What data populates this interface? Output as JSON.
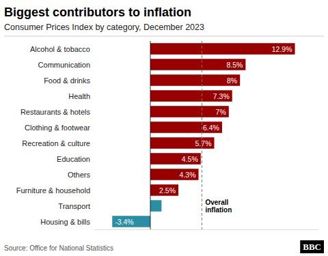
{
  "chart_data": {
    "type": "bar",
    "orientation": "horizontal",
    "title": "Biggest contributors to inflation",
    "subtitle": "Consumer Prices Index by category, December 2023",
    "source": "Source: Office for National Statistics",
    "logo": "BBC",
    "categories": [
      "Alcohol & tobacco",
      "Communication",
      "Food & drinks",
      "Health",
      "Restaurants & hotels",
      "Clothing & footwear",
      "Recreation & culture",
      "Education",
      "Others",
      "Furniture & household",
      "Transport",
      "Housing & bills"
    ],
    "values": [
      12.9,
      8.5,
      8.0,
      7.3,
      7.0,
      6.4,
      5.7,
      4.5,
      4.3,
      2.5,
      1.0,
      -3.4
    ],
    "value_labels": [
      "12.9%",
      "8.5%",
      "8%",
      "7.3%",
      "7%",
      "6.4%",
      "5.7%",
      "4.5%",
      "4.3%",
      "2.5%",
      null,
      "-3.4%"
    ],
    "colors": [
      "#990000",
      "#990000",
      "#990000",
      "#990000",
      "#990000",
      "#990000",
      "#990000",
      "#990000",
      "#990000",
      "#990000",
      "#2a8fa5",
      "#2a8fa5"
    ],
    "data_labels": true,
    "xlim": [
      -5,
      15
    ],
    "tick_labels": "y",
    "grid": false,
    "annotations": [
      {
        "x": 4.6,
        "text": "Overall\ninflation"
      }
    ]
  }
}
